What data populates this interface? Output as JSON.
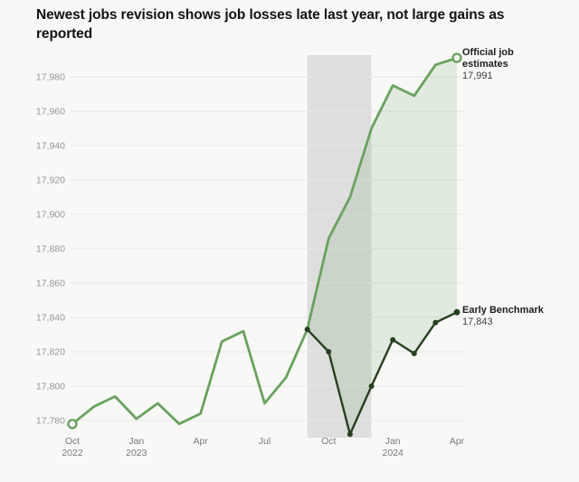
{
  "page": {
    "background": "#f8f8f7"
  },
  "header": {
    "title": "Newest jobs revision shows job losses late last year, not large gains as reported"
  },
  "chart_data": {
    "type": "line",
    "title": "Newest jobs revision shows job losses late last year, not large gains as reported",
    "xlabel": "",
    "ylabel": "",
    "ylim": [
      17780,
      17980
    ],
    "grid": true,
    "x": [
      "Oct 2022",
      "Nov 2022",
      "Dec 2022",
      "Jan 2023",
      "Feb 2023",
      "Mar 2023",
      "Apr 2023",
      "May 2023",
      "Jun 2023",
      "Jul 2023",
      "Aug 2023",
      "Sep 2023",
      "Oct 2023",
      "Nov 2023",
      "Dec 2023",
      "Jan 2024",
      "Feb 2024",
      "Mar 2024",
      "Apr 2024"
    ],
    "series": [
      {
        "name": "Official job estimates",
        "color": "#68a35d",
        "start_index": 0,
        "values": [
          17778,
          17788,
          17794,
          17781,
          17790,
          17778,
          17784,
          17826,
          17832,
          17790,
          17805,
          17833,
          17886,
          17910,
          17950,
          17975,
          17969,
          17987,
          17991
        ]
      },
      {
        "name": "Early Benchmark",
        "color": "#26401f",
        "start_index": 11,
        "values": [
          17833,
          17820,
          17772,
          17800,
          17827,
          17819,
          17837,
          17843
        ]
      }
    ],
    "y_ticks": [
      {
        "value": 17780,
        "label": "17,780"
      },
      {
        "value": 17800,
        "label": "17,800"
      },
      {
        "value": 17820,
        "label": "17,820"
      },
      {
        "value": 17840,
        "label": "17,840"
      },
      {
        "value": 17860,
        "label": "17,860"
      },
      {
        "value": 17880,
        "label": "17,880"
      },
      {
        "value": 17900,
        "label": "17,900"
      },
      {
        "value": 17920,
        "label": "17,920"
      },
      {
        "value": 17940,
        "label": "17,940"
      },
      {
        "value": 17960,
        "label": "17,960"
      },
      {
        "value": 17980,
        "label": "17,980"
      }
    ],
    "x_tick_labels": [
      {
        "index": 0,
        "lines": [
          "Oct",
          "2022"
        ]
      },
      {
        "index": 3,
        "lines": [
          "Jan",
          "2023"
        ]
      },
      {
        "index": 6,
        "lines": [
          "Apr"
        ]
      },
      {
        "index": 9,
        "lines": [
          "Jul"
        ]
      },
      {
        "index": 12,
        "lines": [
          "Oct"
        ]
      },
      {
        "index": 15,
        "lines": [
          "Jan",
          "2024"
        ]
      },
      {
        "index": 18,
        "lines": [
          "Apr"
        ]
      }
    ],
    "shaded_region": {
      "from_index": 11,
      "to_index": 14,
      "color": "#dedede"
    },
    "fill_between": {
      "color": "#68a35d",
      "opacity": 0.16
    },
    "gridline_color": "#e6e6e5",
    "y_axis_label_color": "#959595",
    "x_axis_label_color": "#7a7a7a",
    "annotations": {
      "official": {
        "label": "Official job estimates",
        "value": "17,991"
      },
      "benchmark": {
        "label": "Early Benchmark",
        "value": "17,843"
      }
    }
  }
}
